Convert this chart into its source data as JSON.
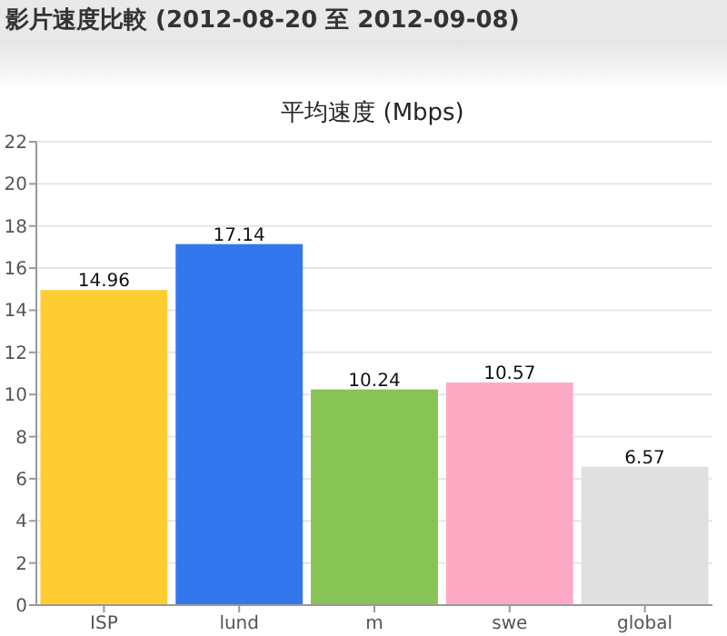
{
  "chart_data": {
    "type": "bar",
    "title": "影片速度比較 (2012-08-20 至 2012-09-08)",
    "subtitle": "平均速度 (Mbps)",
    "categories": [
      "ISP",
      "lund",
      "m",
      "swe",
      "global"
    ],
    "values": [
      14.96,
      17.14,
      10.24,
      10.57,
      6.57
    ],
    "colors": [
      "#ffcc33",
      "#3377ee",
      "#88c455",
      "#ffaac4",
      "#e0e0e0"
    ],
    "ylim": [
      0,
      22
    ],
    "yticks": [
      0,
      2,
      4,
      6,
      8,
      10,
      12,
      14,
      16,
      18,
      20,
      22
    ],
    "grid": "y",
    "data_labels": true
  }
}
